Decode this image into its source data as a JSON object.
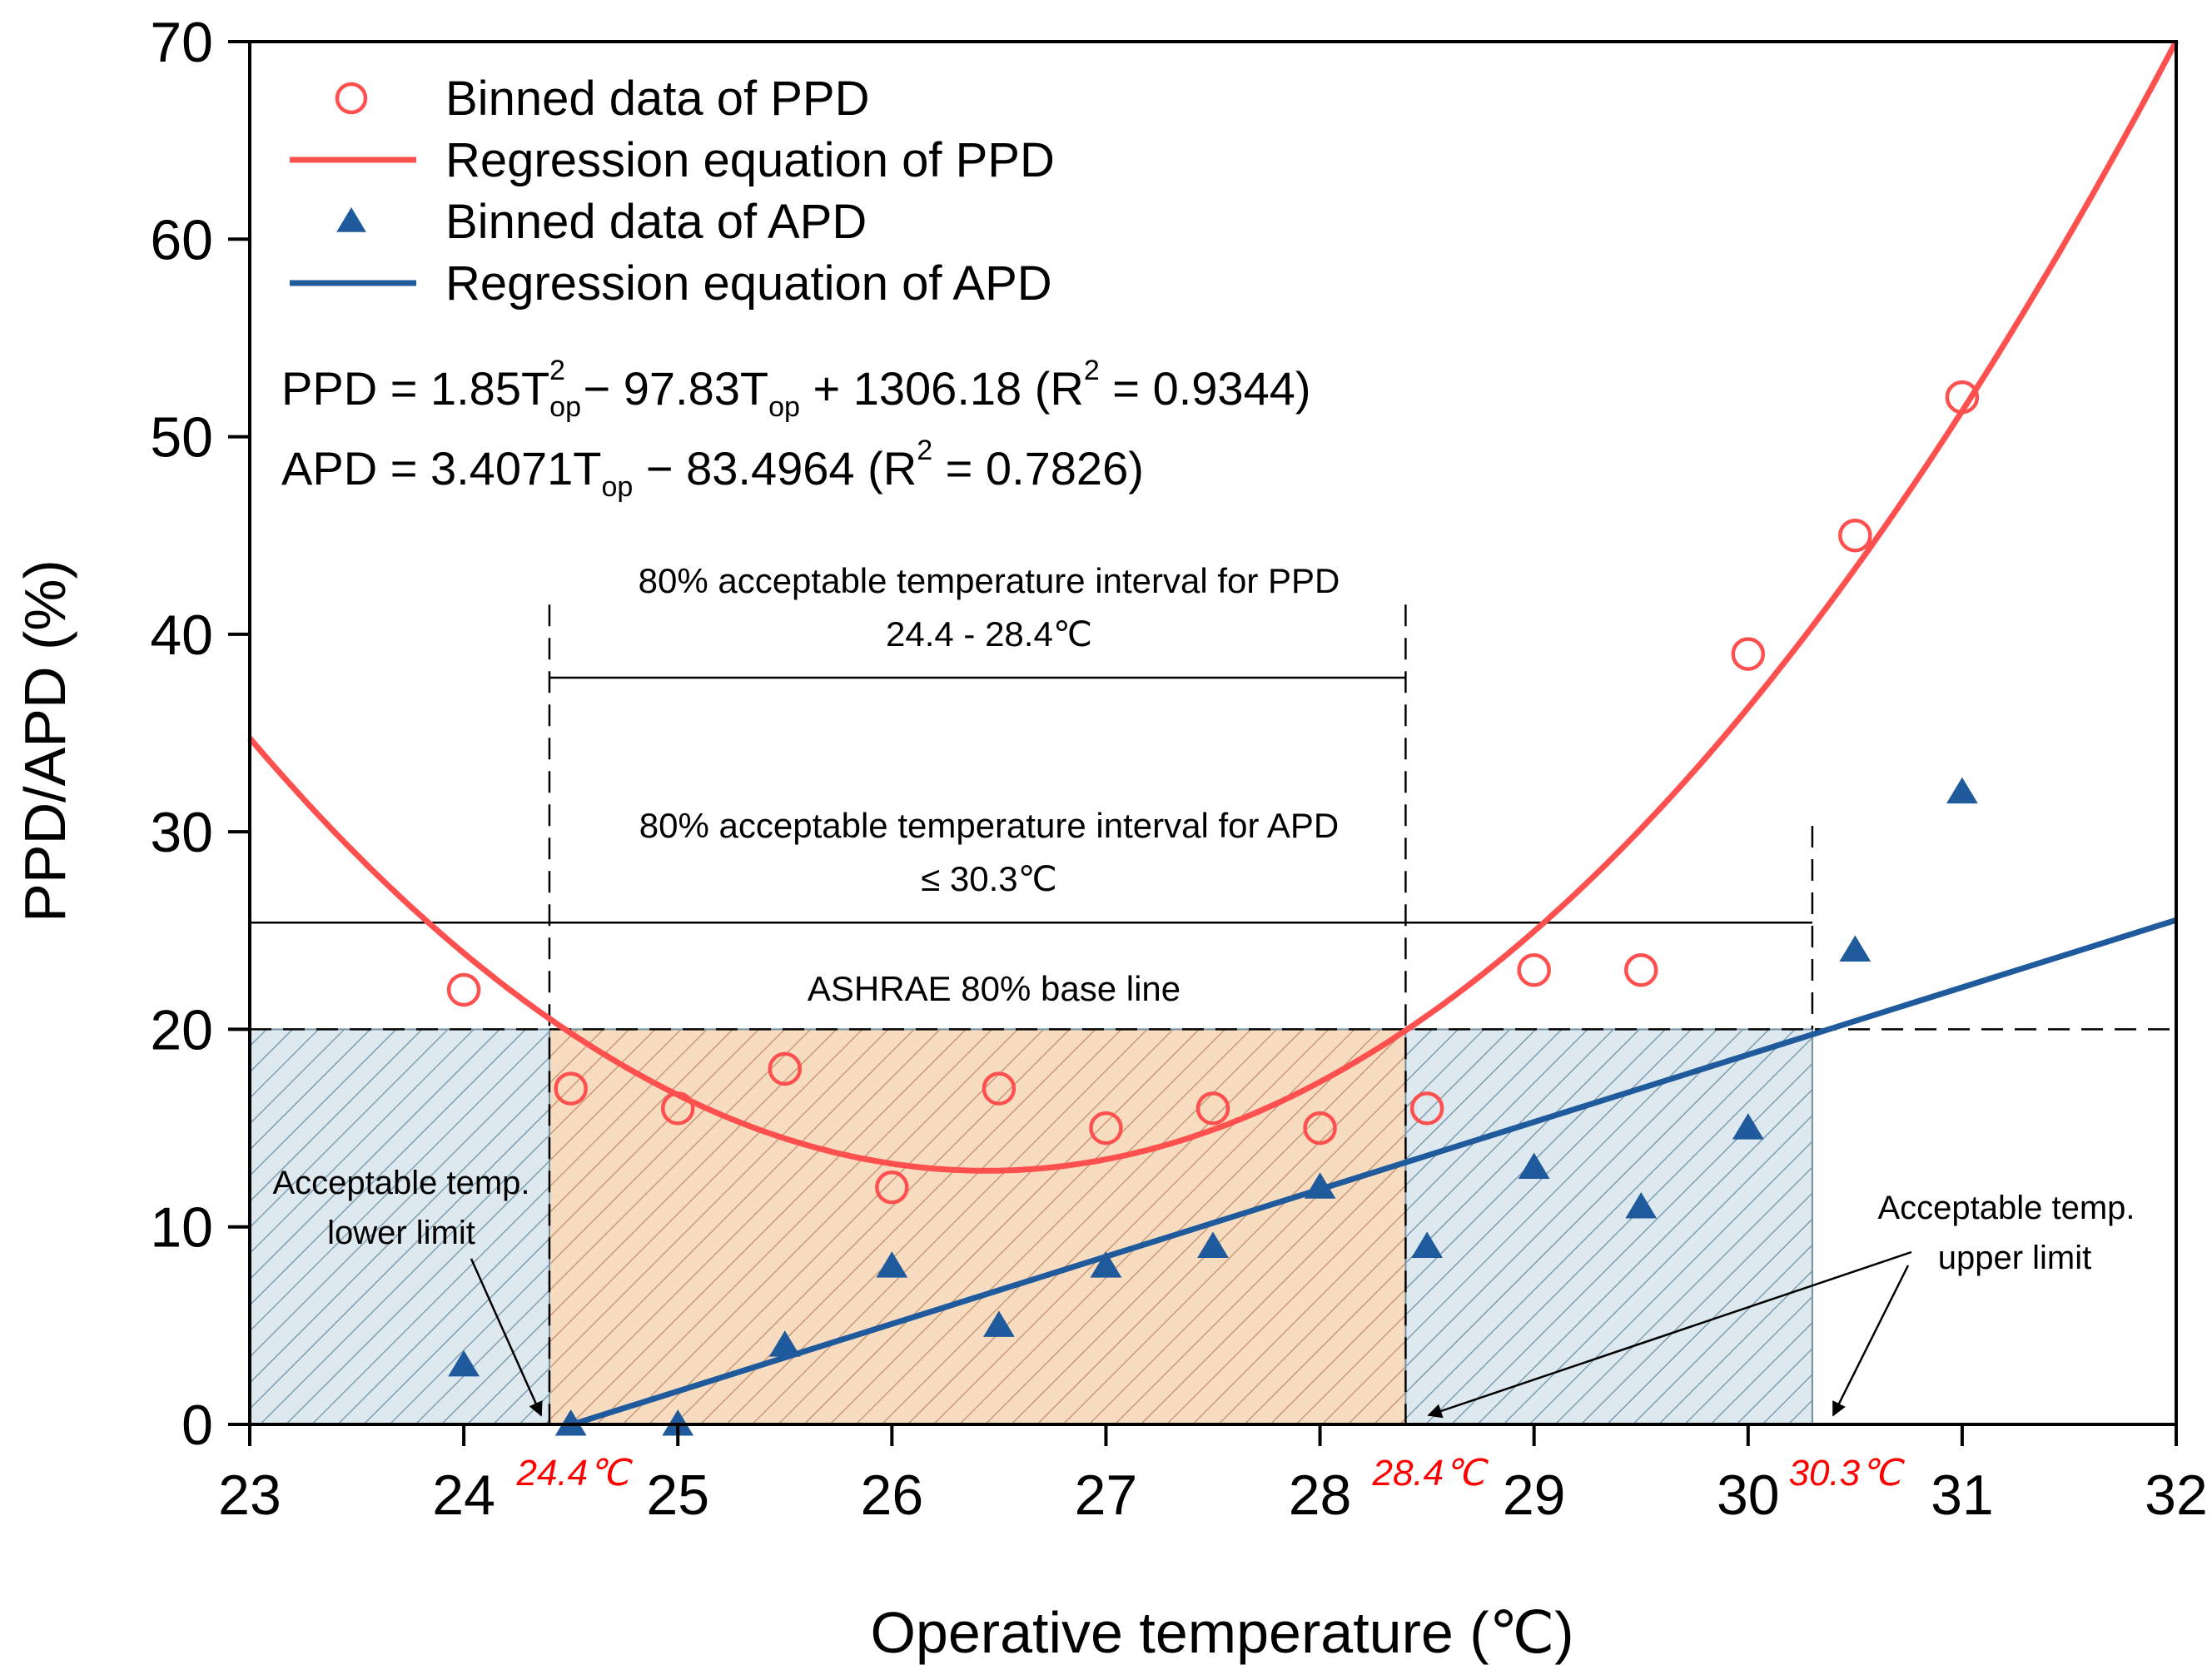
{
  "chart_data": {
    "type": "scatter",
    "xlabel": "Operative temperature (℃)",
    "ylabel": "PPD/APD (%)",
    "xlim": [
      23,
      32
    ],
    "ylim": [
      0,
      70
    ],
    "xticks": [
      "23",
      "24",
      "25",
      "26",
      "27",
      "28",
      "29",
      "30",
      "31",
      "32"
    ],
    "yticks": [
      "0",
      "10",
      "20",
      "30",
      "40",
      "50",
      "60",
      "70"
    ],
    "legend": [
      {
        "label": "Binned data of PPD",
        "marker": "circle",
        "color": "#ff5050"
      },
      {
        "label": "Regression equation of PPD",
        "marker": "line",
        "color": "#ff5050"
      },
      {
        "label": "Binned data of APD",
        "marker": "triangle",
        "color": "#1f5a9c"
      },
      {
        "label": "Regression equation of APD",
        "marker": "line",
        "color": "#1f5a9c"
      }
    ],
    "series": [
      {
        "name": "Binned data of PPD",
        "kind": "points",
        "x": [
          24.0,
          24.5,
          25.0,
          25.5,
          26.0,
          26.5,
          27.0,
          27.5,
          28.0,
          28.5,
          29.0,
          29.5,
          30.0,
          30.5,
          31.0
        ],
        "y": [
          22,
          17,
          16,
          18,
          12,
          17,
          15,
          16,
          15,
          16,
          23,
          23,
          39,
          45,
          52
        ]
      },
      {
        "name": "Binned data of APD",
        "kind": "points",
        "x": [
          24.0,
          24.5,
          25.0,
          25.5,
          26.0,
          26.5,
          27.0,
          27.5,
          28.0,
          28.5,
          29.0,
          29.5,
          30.0,
          30.5,
          31.0
        ],
        "y": [
          3,
          0,
          0,
          4,
          8,
          5,
          8,
          9,
          12,
          9,
          13,
          11,
          15,
          24,
          32
        ]
      },
      {
        "name": "Regression equation of PPD",
        "kind": "quadratic",
        "coefficients": {
          "a": 1.85,
          "b": -97.83,
          "c": 1306.18
        }
      },
      {
        "name": "Regression equation of APD",
        "kind": "linear",
        "coefficients": {
          "slope": 3.4071,
          "intercept": -83.4964
        },
        "x_range": [
          24.5,
          32
        ]
      }
    ],
    "reference_lines": {
      "ashrae_baseline_y": 20,
      "ppd_interval": [
        24.4,
        28.4
      ],
      "apd_upper_limit": 30.3,
      "ppd_bracket_y": 37.8,
      "apd_bracket_y": 25.4
    },
    "regions": [
      {
        "name": "outer-acceptable",
        "x": [
          23,
          30.3
        ],
        "y": [
          0,
          20
        ],
        "fill": "#dde9ee",
        "hatch": "#7f9eb2"
      },
      {
        "name": "ppd-acceptable",
        "x": [
          24.4,
          28.4
        ],
        "y": [
          0,
          20
        ],
        "fill": "#f8dcc0",
        "hatch": "#c99a7a"
      }
    ],
    "equations": {
      "ppd": {
        "prefix": "PPD = 1.85T",
        "sub1": "op",
        "sup1": "2",
        "mid1": " − 97.83T",
        "sub2": "op",
        "mid2": " + 1306.18 (R",
        "sup2": "2",
        "tail": " = 0.9344)"
      },
      "apd": {
        "prefix": "APD = 3.4071T",
        "sub1": "op",
        "mid1": " − 83.4964 (R",
        "sup1": "2",
        "tail": " = 0.7826)"
      }
    },
    "annotations": {
      "ppd_interval_title": "80% acceptable temperature interval for PPD",
      "ppd_interval_range": "24.4 - 28.4℃",
      "apd_interval_title": "80% acceptable temperature interval for APD",
      "apd_interval_range": "≤ 30.3℃",
      "baseline": "ASHRAE 80% base line",
      "lower_limit_line1": "Acceptable temp.",
      "lower_limit_line2": "lower limit",
      "upper_limit_line1": "Acceptable temp.",
      "upper_limit_line2": "upper limit",
      "mark_24_4": "24.4℃",
      "mark_28_4": "28.4℃",
      "mark_30_3": "30.3℃"
    }
  }
}
